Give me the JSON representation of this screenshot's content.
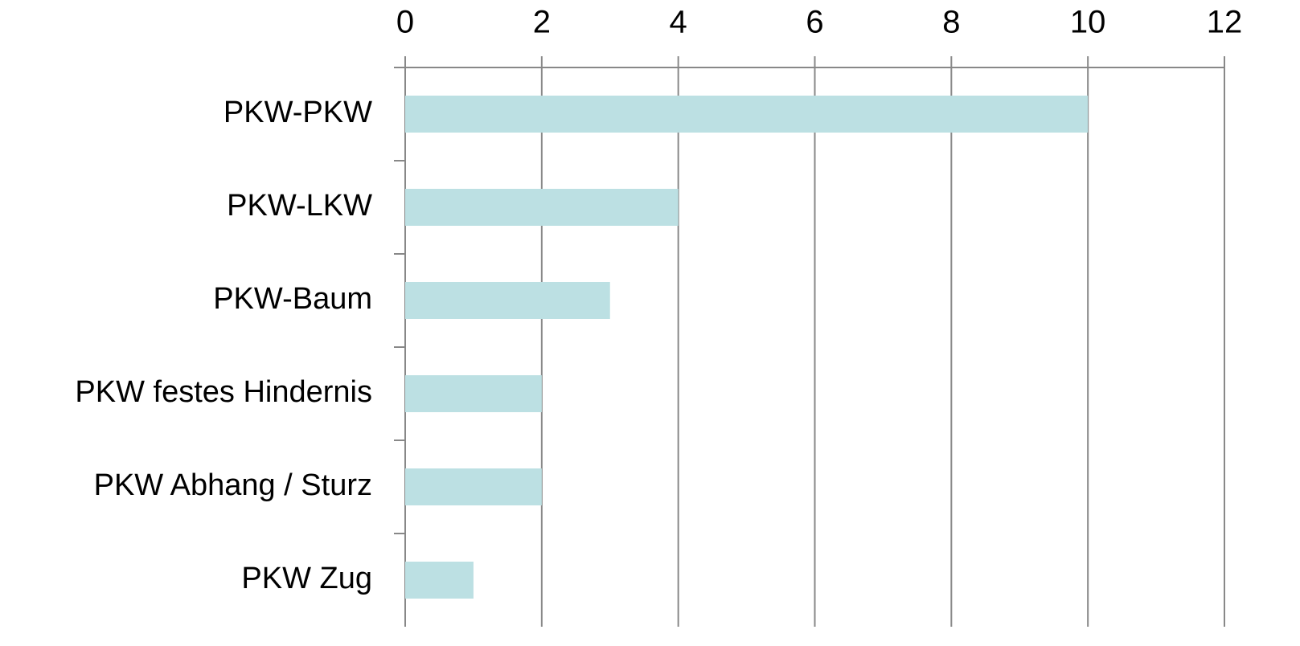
{
  "chart_data": {
    "type": "bar",
    "orientation": "horizontal",
    "categories": [
      "PKW-PKW",
      "PKW-LKW",
      "PKW-Baum",
      "PKW festes Hindernis",
      "PKW Abhang / Sturz",
      "PKW Zug"
    ],
    "values": [
      10,
      4,
      3,
      2,
      2,
      1
    ],
    "color": "#bce0e3",
    "xlim": [
      0,
      12
    ],
    "xticks": [
      0,
      2,
      4,
      6,
      8,
      10,
      12
    ],
    "grid": true
  }
}
